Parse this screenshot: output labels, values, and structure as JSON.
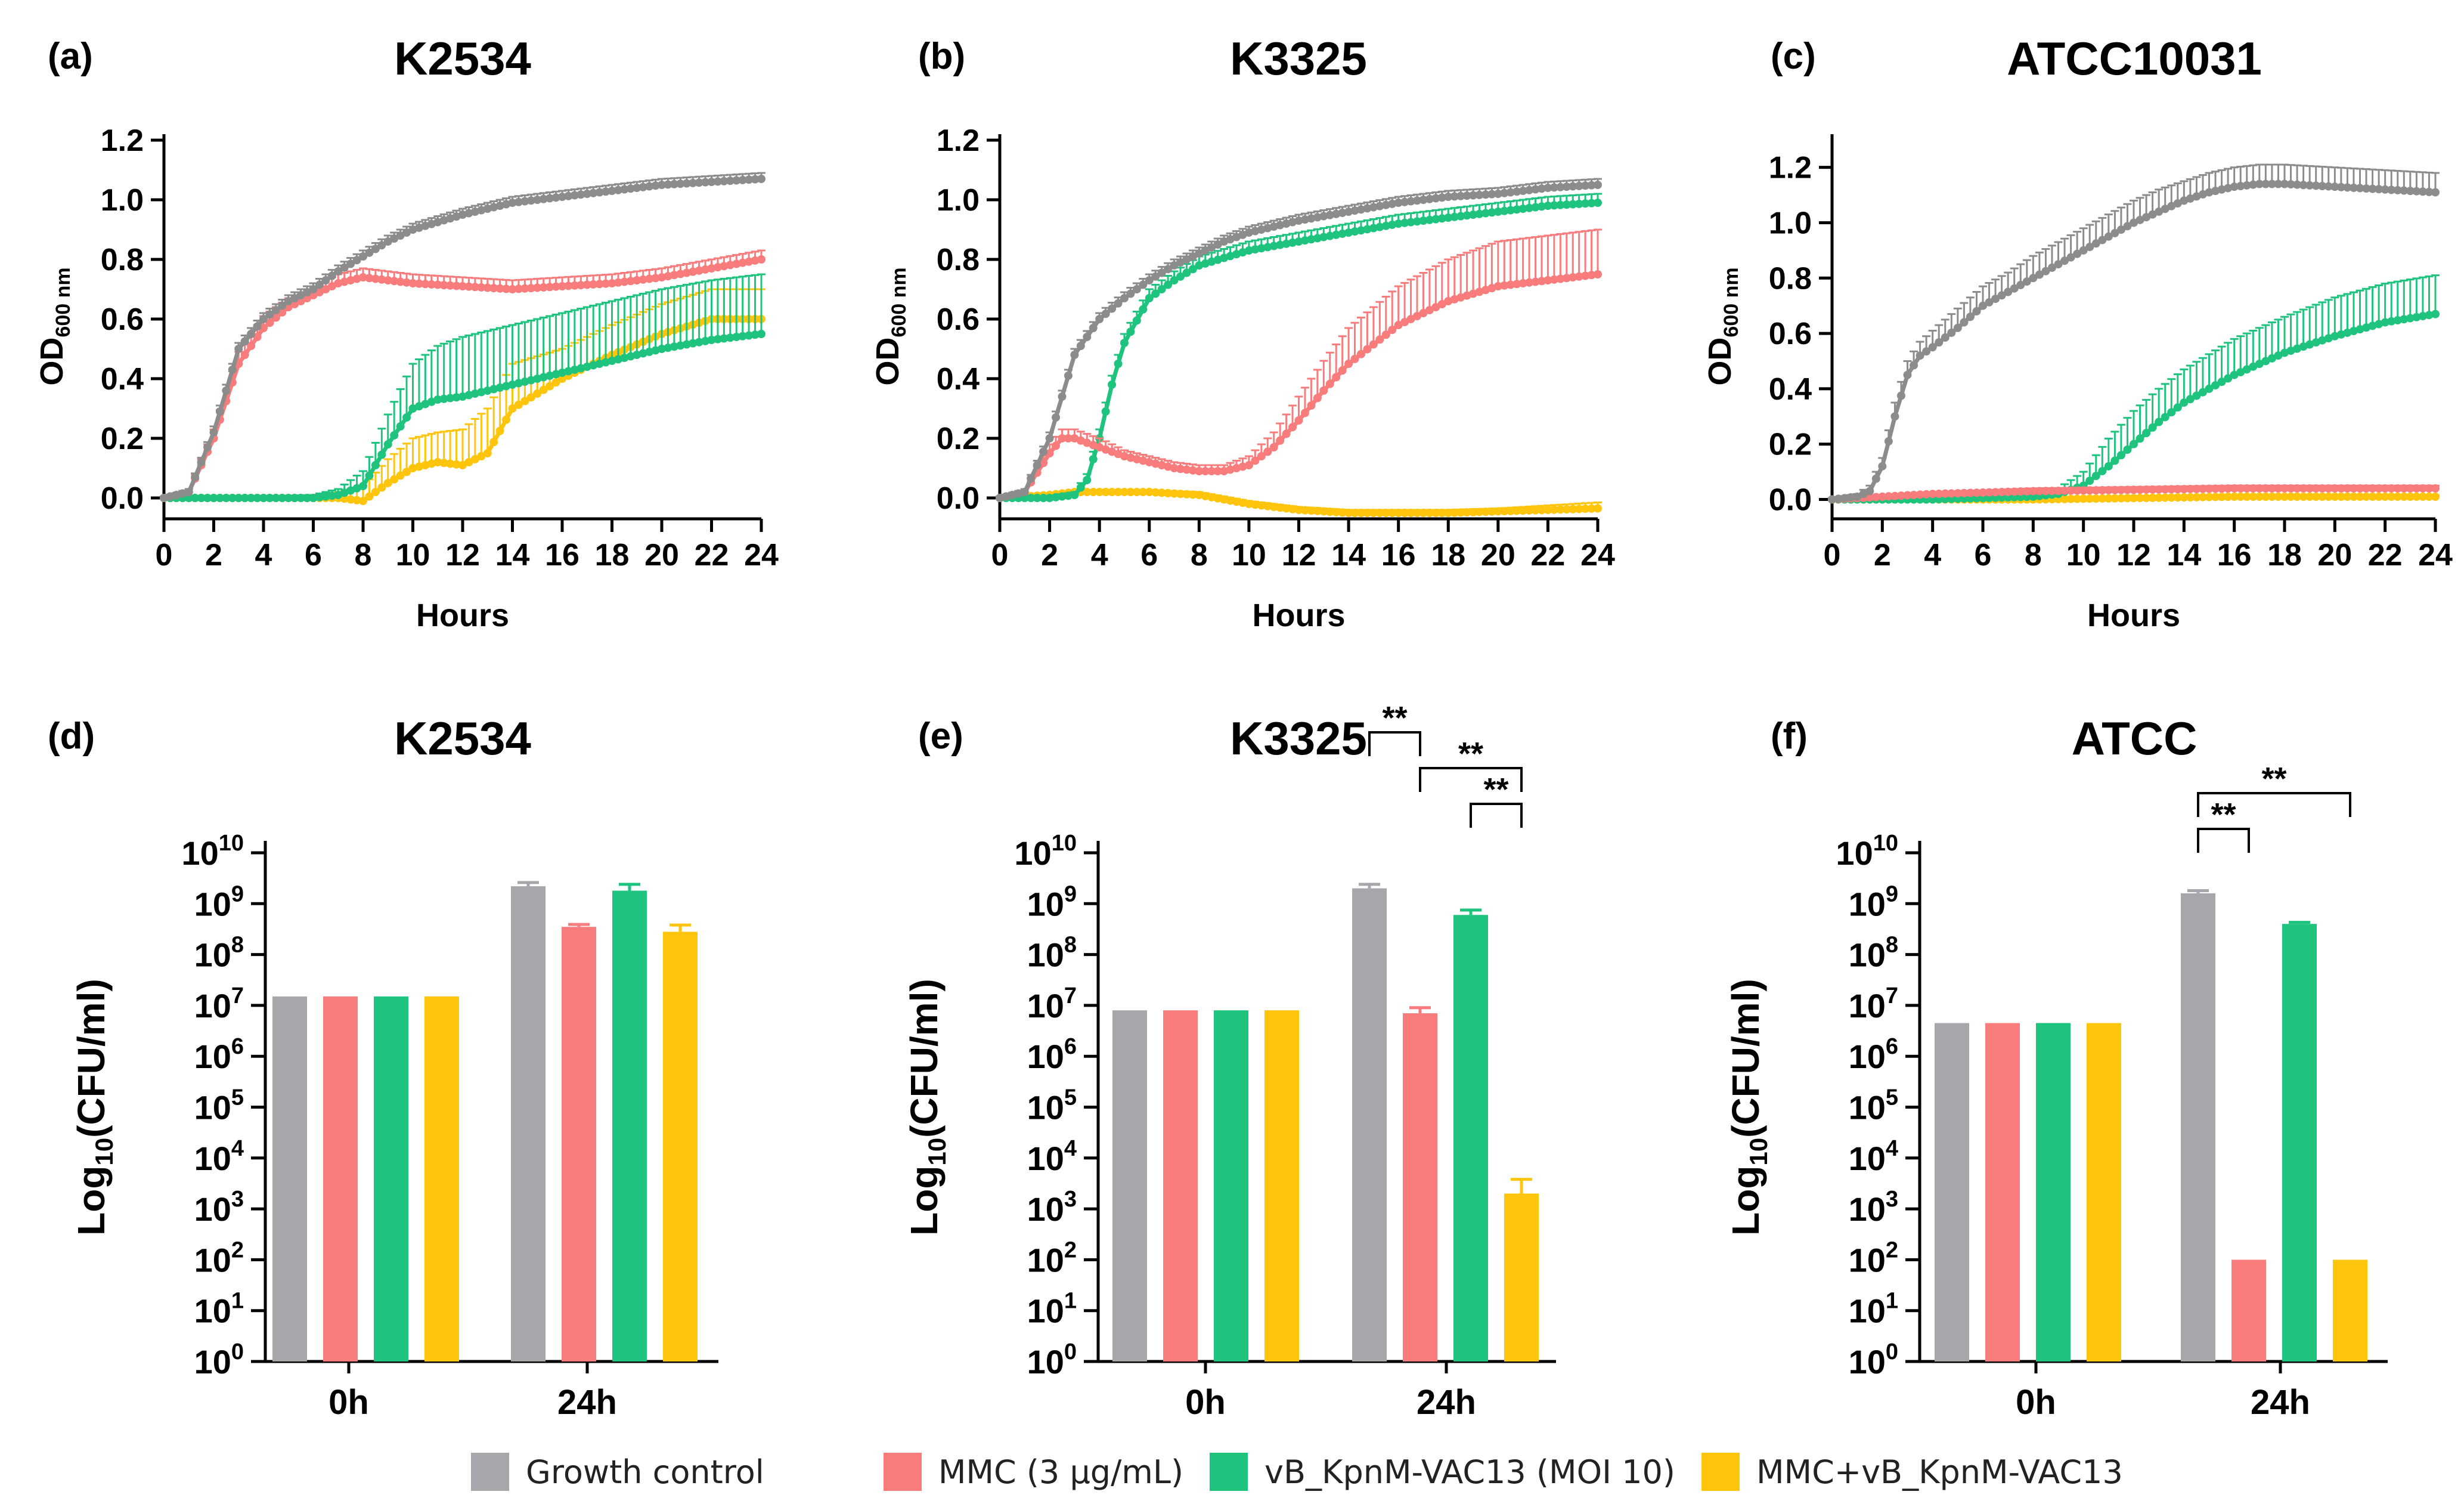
{
  "colors": {
    "growth_control": "#8c8c8c",
    "growth_control_bar": "#a7a6ab",
    "mmc": "#f87c7c",
    "phage": "#1ec47e",
    "combo": "#ffc40c",
    "axis": "#000000"
  },
  "legend": [
    {
      "key": "growth_control",
      "label": "Growth control",
      "color": "#a7a6ab"
    },
    {
      "key": "mmc",
      "label": "MMC (3 µg/mL)",
      "color": "#f87c7c"
    },
    {
      "key": "phage",
      "label": "vB_KpnM-VAC13 (MOI 10)",
      "color": "#1ec47e"
    },
    {
      "key": "combo",
      "label": "MMC+vB_KpnM-VAC13",
      "color": "#ffc40c"
    }
  ],
  "chart_data": [
    {
      "panel": "(a)",
      "type": "line",
      "title": "K2534",
      "xlabel": "Hours",
      "ylabel": "OD",
      "ylabel_sub": "600 nm",
      "xlim": [
        0,
        24
      ],
      "ylim": [
        -0.07,
        1.22
      ],
      "xticks": [
        0,
        2,
        4,
        6,
        8,
        10,
        12,
        14,
        16,
        18,
        20,
        22,
        24
      ],
      "yticks": [
        0.0,
        0.2,
        0.4,
        0.6,
        0.8,
        1.0,
        1.2
      ],
      "series": [
        {
          "key": "growth_control",
          "name": "Growth control",
          "x": [
            0,
            1,
            2,
            3,
            4,
            5,
            6,
            7,
            8,
            9,
            10,
            12,
            14,
            16,
            18,
            20,
            22,
            24
          ],
          "y": [
            0.0,
            0.02,
            0.22,
            0.5,
            0.6,
            0.66,
            0.7,
            0.76,
            0.81,
            0.86,
            0.9,
            0.95,
            0.99,
            1.01,
            1.03,
            1.05,
            1.06,
            1.07
          ],
          "err": [
            0.005,
            0.01,
            0.02,
            0.02,
            0.02,
            0.02,
            0.02,
            0.02,
            0.02,
            0.02,
            0.02,
            0.02,
            0.02,
            0.02,
            0.02,
            0.02,
            0.02,
            0.02
          ]
        },
        {
          "key": "mmc",
          "name": "MMC (3 µg/mL)",
          "x": [
            0,
            1,
            2,
            3,
            4,
            5,
            6,
            7,
            8,
            9,
            10,
            12,
            14,
            16,
            18,
            20,
            22,
            24
          ],
          "y": [
            0.0,
            0.02,
            0.2,
            0.45,
            0.57,
            0.64,
            0.68,
            0.72,
            0.74,
            0.73,
            0.72,
            0.71,
            0.7,
            0.71,
            0.72,
            0.74,
            0.77,
            0.8
          ],
          "err": [
            0.005,
            0.01,
            0.03,
            0.04,
            0.04,
            0.03,
            0.03,
            0.03,
            0.03,
            0.03,
            0.03,
            0.03,
            0.03,
            0.03,
            0.03,
            0.03,
            0.03,
            0.03
          ]
        },
        {
          "key": "phage",
          "name": "vB_KpnM-VAC13 (MOI 10)",
          "x": [
            0,
            2,
            4,
            6,
            7,
            8,
            9,
            10,
            11,
            12,
            14,
            16,
            18,
            20,
            22,
            24
          ],
          "y": [
            0.0,
            0.0,
            0.0,
            0.0,
            0.01,
            0.04,
            0.18,
            0.3,
            0.33,
            0.34,
            0.38,
            0.42,
            0.46,
            0.5,
            0.53,
            0.55
          ],
          "err": [
            0.005,
            0.005,
            0.005,
            0.01,
            0.02,
            0.05,
            0.1,
            0.15,
            0.18,
            0.2,
            0.2,
            0.2,
            0.2,
            0.2,
            0.2,
            0.2
          ]
        },
        {
          "key": "combo",
          "name": "MMC+vB_KpnM-VAC13",
          "x": [
            0,
            2,
            4,
            6,
            7,
            8,
            9,
            10,
            11,
            12,
            13,
            14,
            16,
            18,
            20,
            22,
            24
          ],
          "y": [
            0.0,
            0.0,
            0.0,
            0.0,
            0.0,
            -0.01,
            0.05,
            0.1,
            0.12,
            0.11,
            0.15,
            0.3,
            0.4,
            0.48,
            0.55,
            0.6,
            0.6
          ],
          "err": [
            0.005,
            0.005,
            0.005,
            0.01,
            0.02,
            0.05,
            0.08,
            0.1,
            0.1,
            0.12,
            0.15,
            0.15,
            0.1,
            0.1,
            0.1,
            0.1,
            0.1
          ]
        }
      ]
    },
    {
      "panel": "(b)",
      "type": "line",
      "title": "K3325",
      "xlabel": "Hours",
      "ylabel": "OD",
      "ylabel_sub": "600 nm",
      "xlim": [
        0,
        24
      ],
      "ylim": [
        -0.07,
        1.22
      ],
      "xticks": [
        0,
        2,
        4,
        6,
        8,
        10,
        12,
        14,
        16,
        18,
        20,
        22,
        24
      ],
      "yticks": [
        0.0,
        0.2,
        0.4,
        0.6,
        0.8,
        1.0,
        1.2
      ],
      "series": [
        {
          "key": "growth_control",
          "name": "Growth control",
          "x": [
            0,
            1,
            2,
            3,
            4,
            5,
            6,
            7,
            8,
            9,
            10,
            12,
            14,
            16,
            18,
            20,
            22,
            24
          ],
          "y": [
            0.0,
            0.02,
            0.2,
            0.48,
            0.6,
            0.67,
            0.73,
            0.78,
            0.82,
            0.86,
            0.89,
            0.93,
            0.96,
            0.99,
            1.01,
            1.02,
            1.04,
            1.05
          ],
          "err": [
            0.005,
            0.01,
            0.02,
            0.02,
            0.02,
            0.02,
            0.02,
            0.02,
            0.02,
            0.02,
            0.02,
            0.02,
            0.02,
            0.02,
            0.02,
            0.02,
            0.02,
            0.02
          ]
        },
        {
          "key": "mmc",
          "name": "MMC (3 µg/mL)",
          "x": [
            0,
            1,
            2,
            2.5,
            3,
            4,
            5,
            6,
            7,
            8,
            9,
            10,
            11,
            12,
            13,
            14,
            16,
            18,
            20,
            22,
            24
          ],
          "y": [
            0.0,
            0.02,
            0.15,
            0.2,
            0.2,
            0.17,
            0.14,
            0.12,
            0.1,
            0.09,
            0.09,
            0.11,
            0.17,
            0.26,
            0.36,
            0.45,
            0.58,
            0.66,
            0.71,
            0.73,
            0.75
          ],
          "err": [
            0.005,
            0.01,
            0.03,
            0.03,
            0.03,
            0.03,
            0.02,
            0.02,
            0.02,
            0.02,
            0.02,
            0.03,
            0.05,
            0.08,
            0.1,
            0.12,
            0.13,
            0.14,
            0.15,
            0.15,
            0.15
          ]
        },
        {
          "key": "phage",
          "name": "vB_KpnM-VAC13 (MOI 10)",
          "x": [
            0,
            2,
            3,
            3.5,
            4,
            4.5,
            5,
            6,
            7,
            8,
            10,
            12,
            14,
            16,
            18,
            20,
            22,
            24
          ],
          "y": [
            0.0,
            0.0,
            0.01,
            0.06,
            0.2,
            0.38,
            0.52,
            0.67,
            0.73,
            0.78,
            0.83,
            0.86,
            0.89,
            0.92,
            0.94,
            0.96,
            0.98,
            0.99
          ],
          "err": [
            0.005,
            0.005,
            0.01,
            0.02,
            0.03,
            0.03,
            0.03,
            0.03,
            0.03,
            0.03,
            0.03,
            0.03,
            0.03,
            0.03,
            0.03,
            0.03,
            0.03,
            0.03
          ]
        },
        {
          "key": "combo",
          "name": "MMC+vB_KpnM-VAC13",
          "x": [
            0,
            2,
            3,
            4,
            6,
            8,
            10,
            12,
            14,
            16,
            18,
            20,
            22,
            24
          ],
          "y": [
            0.0,
            0.01,
            0.02,
            0.02,
            0.02,
            0.01,
            -0.02,
            -0.04,
            -0.05,
            -0.05,
            -0.05,
            -0.045,
            -0.04,
            -0.035
          ],
          "err": [
            0.005,
            0.005,
            0.005,
            0.005,
            0.005,
            0.01,
            0.01,
            0.01,
            0.01,
            0.01,
            0.01,
            0.01,
            0.015,
            0.02
          ]
        }
      ]
    },
    {
      "panel": "(c)",
      "type": "line",
      "title": "ATCC10031",
      "xlabel": "Hours",
      "ylabel": "OD",
      "ylabel_sub": "600 nm",
      "xlim": [
        0,
        24
      ],
      "ylim": [
        -0.07,
        1.32
      ],
      "xticks": [
        0,
        2,
        4,
        6,
        8,
        10,
        12,
        14,
        16,
        18,
        20,
        22,
        24
      ],
      "yticks": [
        0.0,
        0.2,
        0.4,
        0.6,
        0.8,
        1.0,
        1.2
      ],
      "series": [
        {
          "key": "growth_control",
          "name": "Growth control",
          "x": [
            0,
            1,
            1.5,
            2,
            2.5,
            3,
            3.5,
            4,
            5,
            6,
            7,
            8,
            9,
            10,
            11,
            12,
            13,
            14,
            15,
            16,
            17,
            18,
            20,
            22,
            24
          ],
          "y": [
            0.0,
            0.01,
            0.03,
            0.12,
            0.3,
            0.45,
            0.52,
            0.55,
            0.62,
            0.7,
            0.75,
            0.8,
            0.85,
            0.9,
            0.95,
            1.0,
            1.04,
            1.08,
            1.11,
            1.13,
            1.14,
            1.14,
            1.13,
            1.12,
            1.11
          ],
          "err": [
            0.005,
            0.01,
            0.02,
            0.03,
            0.05,
            0.05,
            0.05,
            0.06,
            0.07,
            0.07,
            0.07,
            0.08,
            0.08,
            0.08,
            0.08,
            0.08,
            0.08,
            0.07,
            0.07,
            0.07,
            0.07,
            0.07,
            0.07,
            0.07,
            0.07
          ]
        },
        {
          "key": "mmc",
          "name": "MMC (3 µg/mL)",
          "x": [
            0,
            4,
            8,
            12,
            16,
            20,
            24
          ],
          "y": [
            0.0,
            0.02,
            0.03,
            0.035,
            0.04,
            0.04,
            0.04
          ],
          "err": [
            0.005,
            0.005,
            0.01,
            0.01,
            0.01,
            0.01,
            0.01
          ]
        },
        {
          "key": "phage",
          "name": "vB_KpnM-VAC13 (MOI 10)",
          "x": [
            0,
            4,
            8,
            9,
            10,
            11,
            12,
            13,
            14,
            16,
            18,
            20,
            22,
            24
          ],
          "y": [
            0.0,
            0.0,
            0.01,
            0.02,
            0.05,
            0.12,
            0.2,
            0.28,
            0.35,
            0.45,
            0.53,
            0.59,
            0.64,
            0.67
          ],
          "err": [
            0.005,
            0.005,
            0.01,
            0.02,
            0.05,
            0.1,
            0.12,
            0.12,
            0.12,
            0.13,
            0.13,
            0.14,
            0.14,
            0.14
          ]
        },
        {
          "key": "combo",
          "name": "MMC+vB_KpnM-VAC13",
          "x": [
            0,
            4,
            8,
            12,
            16,
            20,
            24
          ],
          "y": [
            0.0,
            0.0,
            0.0,
            0.005,
            0.01,
            0.01,
            0.01
          ],
          "err": [
            0.005,
            0.005,
            0.005,
            0.005,
            0.005,
            0.005,
            0.005
          ]
        }
      ]
    },
    {
      "panel": "(d)",
      "type": "bar",
      "title": "K2534",
      "yscale": "log",
      "ylabel": "Log",
      "ylabel_sub": "10",
      "ylabel_tail": "(CFU/ml)",
      "ylim_exp": [
        0,
        10
      ],
      "ytick_base": "10",
      "yticks_exp": [
        "0",
        "1",
        "2",
        "3",
        "4",
        "5",
        "6",
        "7",
        "8",
        "9",
        "10"
      ],
      "categories": [
        "0h",
        "24h"
      ],
      "series": [
        {
          "key": "growth_control",
          "name": "Growth control",
          "values": [
            15000000.0,
            2200000000.0
          ],
          "err_upper": [
            0,
            2600000000.0
          ]
        },
        {
          "key": "mmc",
          "name": "MMC (3 µg/mL)",
          "values": [
            15000000.0,
            350000000.0
          ],
          "err_upper": [
            0,
            390000000.0
          ]
        },
        {
          "key": "phage",
          "name": "vB_KpnM-VAC13 (MOI 10)",
          "values": [
            15000000.0,
            1800000000.0
          ],
          "err_upper": [
            0,
            2400000000.0
          ]
        },
        {
          "key": "combo",
          "name": "MMC+vB_KpnM-VAC13",
          "values": [
            15000000.0,
            280000000.0
          ],
          "err_upper": [
            0,
            380000000.0
          ]
        }
      ],
      "significance": []
    },
    {
      "panel": "(e)",
      "type": "bar",
      "title": "K3325",
      "yscale": "log",
      "ylabel": "Log",
      "ylabel_sub": "10",
      "ylabel_tail": "(CFU/ml)",
      "ylim_exp": [
        0,
        10
      ],
      "ytick_base": "10",
      "yticks_exp": [
        "0",
        "1",
        "2",
        "3",
        "4",
        "5",
        "6",
        "7",
        "8",
        "9",
        "10"
      ],
      "categories": [
        "0h",
        "24h"
      ],
      "series": [
        {
          "key": "growth_control",
          "name": "Growth control",
          "values": [
            8000000.0,
            2000000000.0
          ],
          "err_upper": [
            0,
            2400000000.0
          ]
        },
        {
          "key": "mmc",
          "name": "MMC (3 µg/mL)",
          "values": [
            8000000.0,
            7000000.0
          ],
          "err_upper": [
            0,
            9000000.0
          ]
        },
        {
          "key": "phage",
          "name": "vB_KpnM-VAC13 (MOI 10)",
          "values": [
            8000000.0,
            600000000.0
          ],
          "err_upper": [
            0,
            750000000.0
          ]
        },
        {
          "key": "combo",
          "name": "MMC+vB_KpnM-VAC13",
          "values": [
            8000000.0,
            2000.0
          ],
          "err_upper": [
            0,
            3800.0
          ]
        }
      ],
      "significance": [
        {
          "from": 0,
          "to": 1,
          "label": "**",
          "level": 2
        },
        {
          "from": 1,
          "to": 3,
          "label": "**",
          "level": 1
        },
        {
          "from": 2,
          "to": 3,
          "label": "**",
          "level": 0
        }
      ]
    },
    {
      "panel": "(f)",
      "type": "bar",
      "title": "ATCC",
      "yscale": "log",
      "ylabel": "Log",
      "ylabel_sub": "10",
      "ylabel_tail": "(CFU/ml)",
      "ylim_exp": [
        0,
        10
      ],
      "ytick_base": "10",
      "yticks_exp": [
        "0",
        "1",
        "2",
        "3",
        "4",
        "5",
        "6",
        "7",
        "8",
        "9",
        "10"
      ],
      "categories": [
        "0h",
        "24h"
      ],
      "series": [
        {
          "key": "growth_control",
          "name": "Growth control",
          "values": [
            4500000.0,
            1600000000.0
          ],
          "err_upper": [
            0,
            1800000000.0
          ]
        },
        {
          "key": "mmc",
          "name": "MMC (3 µg/mL)",
          "values": [
            4500000.0,
            100
          ],
          "err_upper": [
            0,
            0
          ]
        },
        {
          "key": "phage",
          "name": "vB_KpnM-VAC13 (MOI 10)",
          "values": [
            4500000.0,
            400000000.0
          ],
          "err_upper": [
            0,
            430000000.0
          ]
        },
        {
          "key": "combo",
          "name": "MMC+vB_KpnM-VAC13",
          "values": [
            4500000.0,
            100
          ],
          "err_upper": [
            0,
            0
          ]
        }
      ],
      "significance": [
        {
          "from": 0,
          "to": 1,
          "label": "**",
          "level": 0
        },
        {
          "from": 0,
          "to": 3,
          "label": "**",
          "level": 1
        }
      ]
    }
  ]
}
